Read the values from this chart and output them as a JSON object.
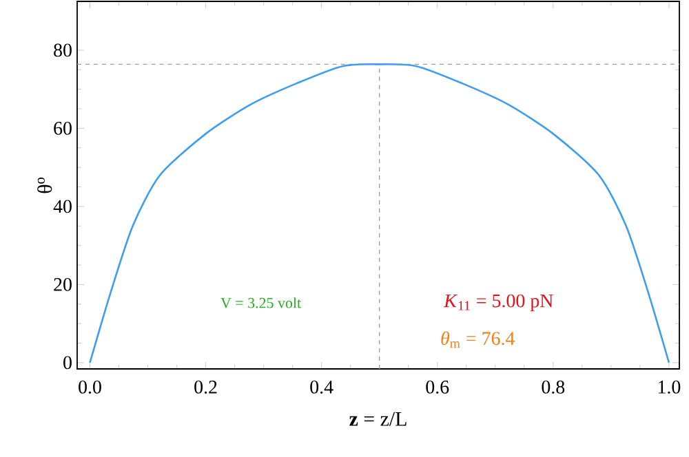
{
  "chart_data": {
    "type": "line",
    "xlabel": "**z** = z/L",
    "ylabel": "θ$^{o}$",
    "x": [
      0,
      0.035,
      0.074,
      0.121,
      0.2,
      0.279,
      0.357,
      0.436,
      0.5,
      0.564,
      0.643,
      0.721,
      0.8,
      0.879,
      0.926,
      0.965,
      1.0
    ],
    "series": [
      {
        "color": "#3d9df3",
        "values": [
          0,
          17.6,
          35,
          48,
          58.6,
          66.2,
          71.5,
          75.9,
          76.4,
          75.9,
          71.5,
          66.2,
          58.6,
          48,
          35,
          17.6,
          0
        ]
      }
    ],
    "xlim": [
      -0.022,
      1.018
    ],
    "ylim": [
      -1.6,
      92.5
    ],
    "xticks": [
      {
        "value": 0,
        "label": "0.0"
      },
      {
        "value": 0.2,
        "label": "0.2"
      },
      {
        "value": 0.4,
        "label": "0.4"
      },
      {
        "value": 0.6,
        "label": "0.6"
      },
      {
        "value": 0.8,
        "label": "0.8"
      },
      {
        "value": 1,
        "label": "1.0"
      }
    ],
    "yticks": [
      0,
      20,
      40,
      60,
      80
    ],
    "ref_lines": [
      {
        "axis": "y",
        "value": 76.4,
        "color": "#a0a0a0",
        "line_style": "dashed"
      },
      {
        "axis": "x",
        "value": 0.5,
        "color": "#a0a0a0",
        "line_style": "dashed"
      }
    ],
    "annotations": [
      "V = 3.25 volt",
      "*K*$_{11}$ =  5.00 pN",
      "*θ*$_{m}$ =  76.4"
    ],
    "grid": false,
    "marker": "none",
    "line_style": "solid"
  }
}
